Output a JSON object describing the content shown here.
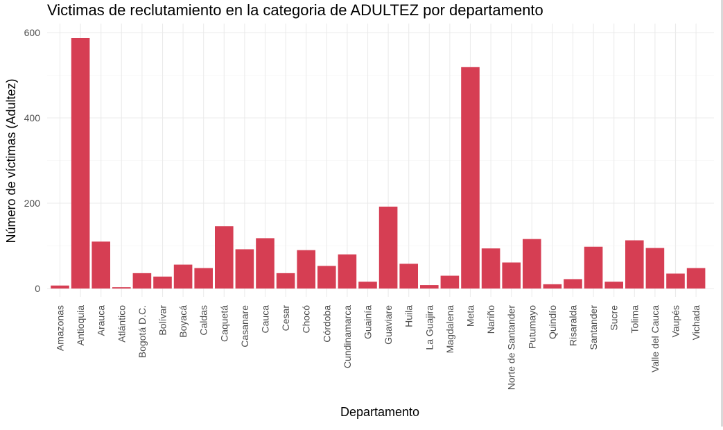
{
  "chart_data": {
    "type": "bar",
    "title": "Victimas de reclutamiento en la categoria de ADULTEZ por departamento",
    "xlabel": "Departamento",
    "ylabel": "Número de víctimas (Adultez)",
    "ylim": [
      0,
      600
    ],
    "yticks": [
      0,
      200,
      400,
      600
    ],
    "grid": true,
    "legend": "none",
    "bar_color": "#d63e53",
    "categories": [
      "Amazonas",
      "Antioquia",
      "Arauca",
      "Atlántico",
      "Bogotá D.C.",
      "Bolívar",
      "Boyacá",
      "Caldas",
      "Caquetá",
      "Casanare",
      "Cauca",
      "Cesar",
      "Chocó",
      "Córdoba",
      "Cundinamarca",
      "Guainía",
      "Guaviare",
      "Huila",
      "La Guajira",
      "Magdalena",
      "Meta",
      "Nariño",
      "Norte de Santander",
      "Putumayo",
      "Quindío",
      "Risaralda",
      "Santander",
      "Sucre",
      "Tolima",
      "Valle del Cauca",
      "Vaupés",
      "Vichada"
    ],
    "values": [
      7,
      587,
      110,
      3,
      36,
      28,
      56,
      48,
      146,
      92,
      118,
      36,
      90,
      53,
      80,
      16,
      192,
      58,
      8,
      30,
      519,
      94,
      61,
      116,
      10,
      22,
      98,
      16,
      113,
      95,
      35,
      48
    ]
  }
}
